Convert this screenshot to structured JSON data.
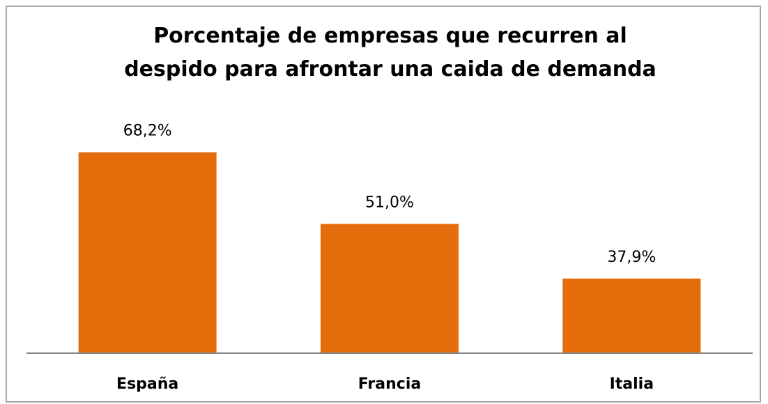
{
  "chart_data": {
    "type": "bar",
    "title": "Porcentaje de empresas que recurren al despido para afrontar una caida de demanda",
    "categories": [
      "España",
      "Francia",
      "Italia"
    ],
    "values": [
      68.2,
      51.0,
      37.9
    ],
    "value_labels": [
      "68,2%",
      "51,0%",
      "37,9%"
    ],
    "color": "#e46c0a",
    "ylim": [
      20,
      80
    ]
  }
}
